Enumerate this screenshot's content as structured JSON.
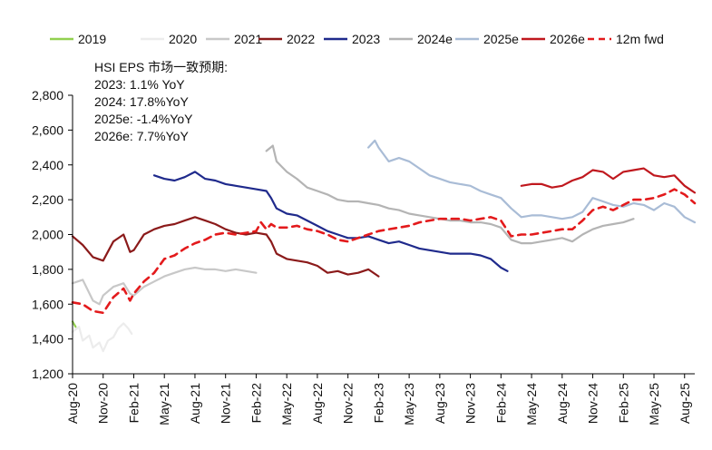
{
  "chart_data": {
    "type": "line",
    "title": "",
    "xlabel": "",
    "ylabel": "",
    "ylim": [
      1200,
      2800
    ],
    "y_ticks": [
      1200,
      1400,
      1600,
      1800,
      2000,
      2200,
      2400,
      2600,
      2800
    ],
    "y_tick_labels": [
      "1,200",
      "1,400",
      "1,600",
      "1,800",
      "2,000",
      "2,200",
      "2,400",
      "2,600",
      "2,800"
    ],
    "x_ticks": [
      "2020-08",
      "2020-11",
      "2021-02",
      "2021-05",
      "2021-08",
      "2021-11",
      "2022-02",
      "2022-05",
      "2022-08",
      "2022-11",
      "2023-02",
      "2023-05",
      "2023-08",
      "2023-11",
      "2024-02",
      "2024-05",
      "2024-08",
      "2024-11",
      "2025-02",
      "2025-05",
      "2025-08"
    ],
    "x_tick_labels": [
      "Aug-20",
      "Nov-20",
      "Feb-21",
      "May-21",
      "Aug-21",
      "Nov-21",
      "Feb-22",
      "May-22",
      "Aug-22",
      "Nov-22",
      "Feb-23",
      "May-23",
      "Aug-23",
      "Nov-23",
      "Feb-24",
      "May-24",
      "Aug-24",
      "Nov-24",
      "Feb-25",
      "May-25",
      "Aug-25"
    ],
    "xlim": [
      "2020-08",
      "2025-09"
    ],
    "grid": false,
    "legend_position": "top",
    "annotations": {
      "heading": "HSI EPS 市场一致预期:",
      "lines": [
        "2023:  1.1%  YoY",
        "2024: 17.8%YoY",
        "2025e: -1.4%YoY",
        "2026e:  7.7%YoY"
      ]
    },
    "series": [
      {
        "name": "2019",
        "color": "#92d050",
        "dash": false,
        "x": [
          "2020-08",
          "2020-08-10"
        ],
        "y": [
          1500,
          1470
        ]
      },
      {
        "name": "2020",
        "color": "#ececec",
        "dash": false,
        "x": [
          "2020-08",
          "2020-08-20",
          "2020-09",
          "2020-09-20",
          "2020-10",
          "2020-10-20",
          "2020-11",
          "2020-11-15",
          "2020-12",
          "2020-12-15",
          "2021-01",
          "2021-01-15",
          "2021-01-25"
        ],
        "y": [
          1440,
          1470,
          1390,
          1420,
          1350,
          1380,
          1330,
          1390,
          1410,
          1460,
          1490,
          1460,
          1430
        ]
      },
      {
        "name": "2021",
        "color": "#c8c8c8",
        "dash": false,
        "x": [
          "2020-08",
          "2020-09",
          "2020-10",
          "2020-10-20",
          "2020-11",
          "2020-12",
          "2021-01",
          "2021-01-20",
          "2021-02",
          "2021-03",
          "2021-04",
          "2021-05",
          "2021-06",
          "2021-07",
          "2021-08",
          "2021-09",
          "2021-10",
          "2021-11",
          "2021-12",
          "2022-01",
          "2022-02"
        ],
        "y": [
          1720,
          1740,
          1620,
          1600,
          1650,
          1700,
          1720,
          1660,
          1650,
          1700,
          1730,
          1760,
          1780,
          1800,
          1810,
          1800,
          1800,
          1790,
          1800,
          1790,
          1780
        ]
      },
      {
        "name": "2022",
        "color": "#8b1a1a",
        "dash": false,
        "x": [
          "2020-08",
          "2020-09",
          "2020-10",
          "2020-11",
          "2020-12",
          "2021-01",
          "2021-01-20",
          "2021-02",
          "2021-03",
          "2021-04",
          "2021-05",
          "2021-06",
          "2021-07",
          "2021-08",
          "2021-09",
          "2021-10",
          "2021-11",
          "2021-12",
          "2022-01",
          "2022-02",
          "2022-03",
          "2022-03-15",
          "2022-04",
          "2022-05",
          "2022-06",
          "2022-07",
          "2022-08",
          "2022-09",
          "2022-10",
          "2022-11",
          "2022-12",
          "2023-01",
          "2023-02"
        ],
        "y": [
          1990,
          1940,
          1870,
          1850,
          1960,
          2000,
          1900,
          1910,
          2000,
          2030,
          2050,
          2060,
          2080,
          2100,
          2080,
          2060,
          2030,
          2010,
          2000,
          2010,
          2000,
          1960,
          1890,
          1860,
          1850,
          1840,
          1820,
          1780,
          1790,
          1770,
          1780,
          1800,
          1760
        ]
      },
      {
        "name": "2023",
        "color": "#1f2a8c",
        "dash": false,
        "x": [
          "2021-04",
          "2021-05",
          "2021-06",
          "2021-07",
          "2021-08",
          "2021-09",
          "2021-10",
          "2021-11",
          "2021-12",
          "2022-01",
          "2022-02",
          "2022-03",
          "2022-03-15",
          "2022-04",
          "2022-05",
          "2022-06",
          "2022-07",
          "2022-08",
          "2022-09",
          "2022-10",
          "2022-11",
          "2022-12",
          "2023-01",
          "2023-02",
          "2023-03",
          "2023-04",
          "2023-05",
          "2023-06",
          "2023-07",
          "2023-08",
          "2023-09",
          "2023-10",
          "2023-11",
          "2023-12",
          "2024-01",
          "2024-02",
          "2024-02-20"
        ],
        "y": [
          2340,
          2320,
          2310,
          2330,
          2360,
          2320,
          2310,
          2290,
          2280,
          2270,
          2260,
          2250,
          2210,
          2150,
          2120,
          2110,
          2080,
          2050,
          2020,
          2000,
          1980,
          1980,
          1990,
          1970,
          1950,
          1960,
          1940,
          1920,
          1910,
          1900,
          1890,
          1890,
          1890,
          1880,
          1860,
          1810,
          1790
        ]
      },
      {
        "name": "2024e",
        "color": "#b4b4b4",
        "dash": false,
        "x": [
          "2022-03",
          "2022-03-20",
          "2022-04",
          "2022-05",
          "2022-06",
          "2022-07",
          "2022-08",
          "2022-09",
          "2022-10",
          "2022-11",
          "2022-12",
          "2023-01",
          "2023-02",
          "2023-03",
          "2023-04",
          "2023-05",
          "2023-06",
          "2023-07",
          "2023-08",
          "2023-09",
          "2023-10",
          "2023-11",
          "2023-12",
          "2024-01",
          "2024-02",
          "2024-03",
          "2024-04",
          "2024-05",
          "2024-06",
          "2024-07",
          "2024-08",
          "2024-09",
          "2024-10",
          "2024-11",
          "2024-12",
          "2025-01",
          "2025-02",
          "2025-03"
        ],
        "y": [
          2480,
          2510,
          2420,
          2360,
          2320,
          2270,
          2250,
          2230,
          2200,
          2190,
          2190,
          2180,
          2170,
          2150,
          2140,
          2120,
          2110,
          2100,
          2090,
          2080,
          2080,
          2070,
          2070,
          2060,
          2040,
          1970,
          1950,
          1950,
          1960,
          1970,
          1980,
          1960,
          2000,
          2030,
          2050,
          2060,
          2070,
          2090
        ]
      },
      {
        "name": "2025e",
        "color": "#a9bcd6",
        "dash": false,
        "x": [
          "2023-01",
          "2023-01-20",
          "2023-02",
          "2023-03",
          "2023-04",
          "2023-05",
          "2023-06",
          "2023-07",
          "2023-08",
          "2023-09",
          "2023-10",
          "2023-11",
          "2023-12",
          "2024-01",
          "2024-02",
          "2024-03",
          "2024-04",
          "2024-05",
          "2024-06",
          "2024-07",
          "2024-08",
          "2024-09",
          "2024-10",
          "2024-11",
          "2024-12",
          "2025-01",
          "2025-02",
          "2025-03",
          "2025-04",
          "2025-05",
          "2025-06",
          "2025-07",
          "2025-08",
          "2025-09"
        ],
        "y": [
          2500,
          2540,
          2500,
          2420,
          2440,
          2420,
          2380,
          2340,
          2320,
          2300,
          2290,
          2280,
          2250,
          2230,
          2210,
          2150,
          2100,
          2110,
          2110,
          2100,
          2090,
          2100,
          2130,
          2210,
          2190,
          2170,
          2160,
          2180,
          2170,
          2140,
          2180,
          2160,
          2100,
          2070
        ]
      },
      {
        "name": "2026e",
        "color": "#c0181e",
        "dash": false,
        "x": [
          "2024-04",
          "2024-05",
          "2024-06",
          "2024-07",
          "2024-08",
          "2024-09",
          "2024-10",
          "2024-11",
          "2024-12",
          "2025-01",
          "2025-02",
          "2025-03",
          "2025-04",
          "2025-05",
          "2025-06",
          "2025-07",
          "2025-08",
          "2025-09"
        ],
        "y": [
          2280,
          2290,
          2290,
          2270,
          2280,
          2310,
          2330,
          2370,
          2360,
          2320,
          2360,
          2370,
          2380,
          2340,
          2330,
          2340,
          2280,
          2240
        ]
      },
      {
        "name": "12m fwd",
        "color": "#e31a1c",
        "dash": true,
        "x": [
          "2020-08",
          "2020-09",
          "2020-10",
          "2020-11",
          "2020-12",
          "2021-01",
          "2021-01-20",
          "2021-02",
          "2021-03",
          "2021-04",
          "2021-05",
          "2021-06",
          "2021-07",
          "2021-08",
          "2021-09",
          "2021-10",
          "2021-11",
          "2021-12",
          "2022-01",
          "2022-02",
          "2022-02-15",
          "2022-03",
          "2022-03-15",
          "2022-04",
          "2022-05",
          "2022-06",
          "2022-07",
          "2022-08",
          "2022-09",
          "2022-10",
          "2022-11",
          "2022-12",
          "2023-01",
          "2023-02",
          "2023-03",
          "2023-04",
          "2023-05",
          "2023-06",
          "2023-07",
          "2023-08",
          "2023-09",
          "2023-10",
          "2023-11",
          "2023-12",
          "2024-01",
          "2024-02",
          "2024-03",
          "2024-04",
          "2024-05",
          "2024-06",
          "2024-07",
          "2024-08",
          "2024-09",
          "2024-10",
          "2024-11",
          "2024-12",
          "2025-01",
          "2025-02",
          "2025-03",
          "2025-04",
          "2025-05",
          "2025-06",
          "2025-07",
          "2025-08",
          "2025-09"
        ],
        "y": [
          1610,
          1600,
          1560,
          1550,
          1640,
          1690,
          1620,
          1660,
          1730,
          1780,
          1860,
          1880,
          1920,
          1950,
          1970,
          2000,
          2010,
          2000,
          2010,
          2020,
          2070,
          2030,
          2060,
          2040,
          2040,
          2050,
          2030,
          2020,
          2000,
          1970,
          1960,
          1980,
          2000,
          2020,
          2030,
          2040,
          2050,
          2070,
          2080,
          2090,
          2090,
          2090,
          2080,
          2090,
          2100,
          2080,
          1990,
          2000,
          2000,
          2010,
          2020,
          2030,
          2030,
          2080,
          2140,
          2160,
          2140,
          2170,
          2200,
          2200,
          2210,
          2230,
          2260,
          2230,
          2180
        ]
      }
    ]
  }
}
